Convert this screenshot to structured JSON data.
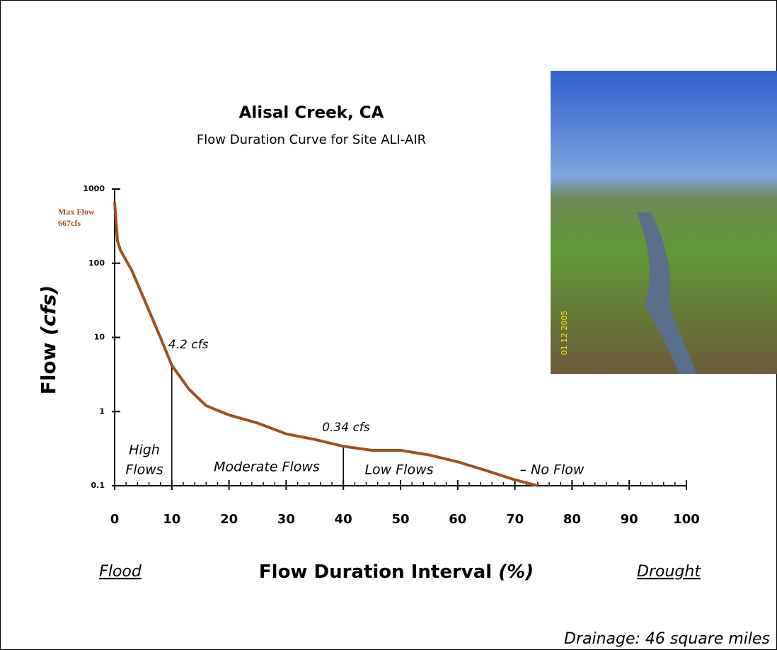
{
  "chart_data": {
    "type": "line",
    "title": "Alisal Creek, CA",
    "subtitle": "Flow Duration Curve for Site ALI-AIR",
    "ylabel": {
      "text": "Flow",
      "unit": "(cfs)"
    },
    "xlabel": {
      "text": "Flow Duration Interval",
      "unit": "(%)"
    },
    "x": [
      0,
      0.5,
      1,
      3,
      5,
      8,
      10,
      13,
      16,
      20,
      25,
      30,
      35,
      40,
      45,
      50,
      55,
      60,
      65,
      70,
      74
    ],
    "series": [
      {
        "color": "#a0501e",
        "values": [
          667,
          200,
          150,
          80,
          35,
          10,
          4.2,
          2,
          1.2,
          0.9,
          0.7,
          0.5,
          0.42,
          0.34,
          0.3,
          0.3,
          0.26,
          0.21,
          0.16,
          0.12,
          0.1
        ]
      }
    ],
    "xlim": [
      0,
      100
    ],
    "xticks": [
      0,
      10,
      20,
      30,
      40,
      50,
      60,
      70,
      80,
      90,
      100
    ],
    "xminorticks": [
      2,
      4,
      6,
      8,
      12,
      14,
      16,
      18,
      22,
      24,
      26,
      28,
      32,
      34,
      36,
      38,
      42,
      44,
      46,
      48,
      52,
      54,
      56,
      58,
      62,
      64,
      66,
      68,
      72,
      74,
      76,
      78,
      82,
      84,
      86,
      88,
      92,
      94,
      96,
      98
    ],
    "ylim": [
      0.1,
      1000
    ],
    "yticks": [
      0.1,
      1,
      10,
      100,
      1000
    ],
    "log_y": true,
    "annotations": [
      {
        "x": 0,
        "value": 667,
        "lines": [
          "Max Flow",
          "667cfs"
        ]
      },
      {
        "x": 10,
        "value": 4.2,
        "lines": [
          "4.2 cfs"
        ]
      },
      {
        "x": 40,
        "value": 0.34,
        "lines": [
          "0.34 cfs"
        ]
      }
    ],
    "regions": [
      [
        "High",
        "Flows"
      ],
      [
        "Moderate Flows"
      ],
      [
        "Low Flows"
      ],
      [
        "– No Flow"
      ]
    ],
    "x_left_note": "Flood",
    "x_right_note": "Drought",
    "footnote": "Drainage: 46 square miles",
    "photo_date": "01 12 2005"
  }
}
